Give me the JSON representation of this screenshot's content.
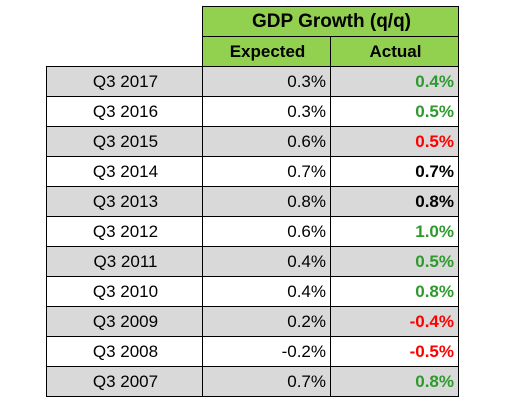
{
  "chart_data": {
    "type": "table",
    "title": "GDP Growth (q/q)",
    "columns": [
      "Expected",
      "Actual"
    ],
    "rows": [
      {
        "period": "Q3 2017",
        "expected": "0.3%",
        "actual": "0.4%",
        "actual_color": "#2e9a2e",
        "shaded": true
      },
      {
        "period": "Q3 2016",
        "expected": "0.3%",
        "actual": "0.5%",
        "actual_color": "#2e9a2e",
        "shaded": false
      },
      {
        "period": "Q3 2015",
        "expected": "0.6%",
        "actual": "0.5%",
        "actual_color": "#ff0000",
        "shaded": true
      },
      {
        "period": "Q3 2014",
        "expected": "0.7%",
        "actual": "0.7%",
        "actual_color": "#000000",
        "shaded": false
      },
      {
        "period": "Q3 2013",
        "expected": "0.8%",
        "actual": "0.8%",
        "actual_color": "#000000",
        "shaded": true
      },
      {
        "period": "Q3 2012",
        "expected": "0.6%",
        "actual": "1.0%",
        "actual_color": "#2e9a2e",
        "shaded": false
      },
      {
        "period": "Q3 2011",
        "expected": "0.4%",
        "actual": "0.5%",
        "actual_color": "#2e9a2e",
        "shaded": true
      },
      {
        "period": "Q3 2010",
        "expected": "0.4%",
        "actual": "0.8%",
        "actual_color": "#2e9a2e",
        "shaded": false
      },
      {
        "period": "Q3 2009",
        "expected": "0.2%",
        "actual": "-0.4%",
        "actual_color": "#ff0000",
        "shaded": true
      },
      {
        "period": "Q3 2008",
        "expected": "-0.2%",
        "actual": "-0.5%",
        "actual_color": "#ff0000",
        "shaded": false
      },
      {
        "period": "Q3 2007",
        "expected": "0.7%",
        "actual": "0.8%",
        "actual_color": "#2e9a2e",
        "shaded": true
      }
    ]
  },
  "colors": {
    "header_green": "#92d050",
    "row_shade": "#d9d9d9",
    "positive_surprise": "#2e9a2e",
    "negative_surprise": "#ff0000",
    "in_line": "#000000"
  }
}
